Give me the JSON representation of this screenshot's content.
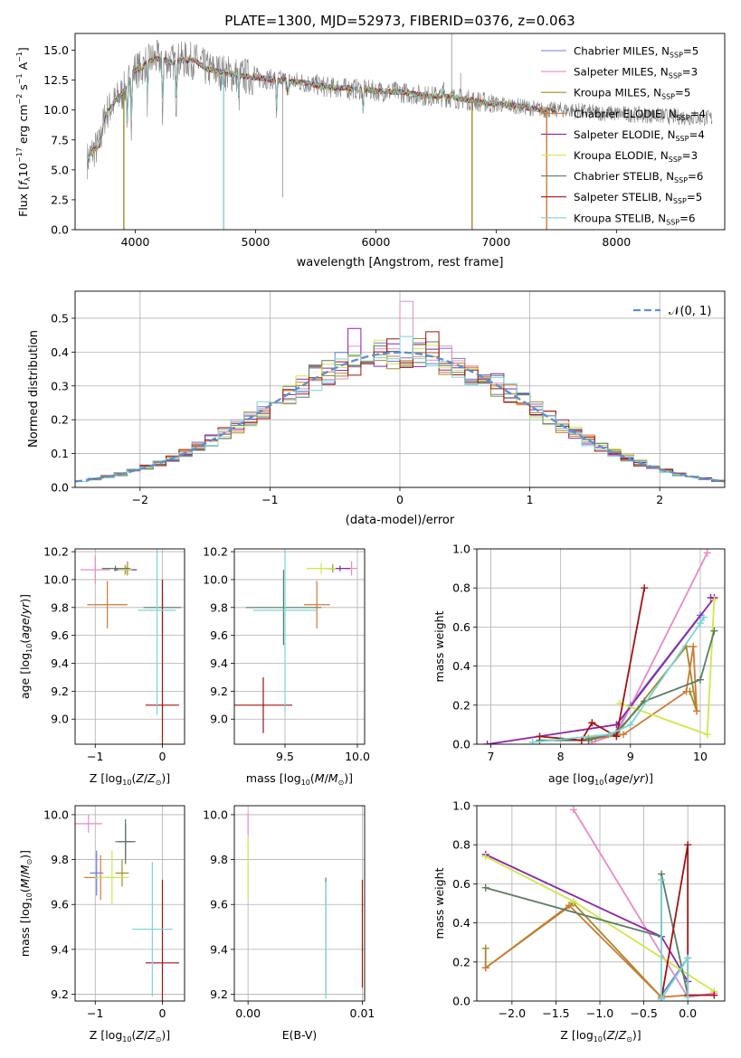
{
  "figure_title": "PLATE=1300, MJD=52973, FIBERID=0376, z=0.063",
  "series_names": [
    "Chabrier MILES",
    "Salpeter MILES",
    "Kroupa MILES",
    "Chabrier ELODIE",
    "Salpeter ELODIE",
    "Kroupa ELODIE",
    "Chabrier STELIB",
    "Salpeter STELIB",
    "Kroupa STELIB"
  ],
  "series_nssp": [
    5,
    3,
    5,
    4,
    4,
    3,
    6,
    5,
    6
  ],
  "colors": {
    "series": [
      "#6a7fd6",
      "#e98ac2",
      "#a38a28",
      "#cf7a34",
      "#8e24aa",
      "#cde84a",
      "#5a7d63",
      "#a51212",
      "#79d4d4"
    ],
    "grid": "#b0b0b0",
    "data": "#808080",
    "normal_curve": "#5b8fd6"
  },
  "chart_data": [
    {
      "type": "line",
      "id": "spectrum",
      "title": "PLATE=1300, MJD=52973, FIBERID=0376, z=0.063",
      "xlabel": "wavelength [Angstrom, rest frame]",
      "ylabel": "Flux [f_λ 10^-17 erg cm^-2 s^-1 A^-1]",
      "xlim": [
        3500,
        8900
      ],
      "ylim": [
        0,
        16.4
      ],
      "xticks": [
        4000,
        5000,
        6000,
        7000,
        8000
      ],
      "yticks": [
        0.0,
        2.5,
        5.0,
        7.5,
        10.0,
        12.5,
        15.0
      ],
      "xtick_labels": [
        "4000",
        "5000",
        "6000",
        "7000",
        "8000"
      ],
      "ytick_labels": [
        "0.0",
        "2.5",
        "5.0",
        "7.5",
        "10.0",
        "12.5",
        "15.0"
      ],
      "continuum": {
        "x": [
          3600,
          3650,
          3700,
          3750,
          3800,
          3850,
          3900,
          3950,
          4000,
          4050,
          4100,
          4200,
          4300,
          4400,
          4500,
          4600,
          4800,
          5000,
          5200,
          5400,
          5600,
          5800,
          6000,
          6200,
          6400,
          6600,
          6800,
          7000,
          7200,
          7400,
          7600,
          7800,
          8000,
          8200,
          8400,
          8600,
          8800
        ],
        "y": [
          5.8,
          6.6,
          7.0,
          9.6,
          10.3,
          10.9,
          11.5,
          12.6,
          13.4,
          13.4,
          14.1,
          14.3,
          14.0,
          14.2,
          14.1,
          13.4,
          13.0,
          12.7,
          12.5,
          12.3,
          11.9,
          11.8,
          11.6,
          11.5,
          11.2,
          11.1,
          10.8,
          10.5,
          10.3,
          10.0,
          10.0,
          9.8,
          9.7,
          9.6,
          9.5,
          9.4,
          9.3
        ]
      },
      "absorption_features": [
        {
          "x": 3934,
          "y": 8.0
        },
        {
          "x": 3969,
          "y": 8.8
        },
        {
          "x": 4102,
          "y": 10.7
        },
        {
          "x": 4227,
          "y": 9.7
        },
        {
          "x": 4340,
          "y": 10.4
        },
        {
          "x": 4861,
          "y": 10.9
        },
        {
          "x": 5175,
          "y": 9.8
        },
        {
          "x": 5270,
          "y": 10.7
        },
        {
          "x": 5893,
          "y": 9.4
        },
        {
          "x": 6563,
          "y": 11.8
        }
      ],
      "model_spikes": [
        {
          "x": 3905,
          "y": 0,
          "series": "Kroupa MILES"
        },
        {
          "x": 4735,
          "y": 0,
          "series": "Kroupa STELIB"
        },
        {
          "x": 6800,
          "y": 0,
          "series": "Kroupa MILES"
        },
        {
          "x": 7420,
          "y": 0,
          "series": "Chabrier ELODIE"
        }
      ],
      "legend_position": "upper-right"
    },
    {
      "type": "step",
      "id": "residual_histogram",
      "xlabel": "(data-model)/error",
      "ylabel": "Normed distribution",
      "xlim": [
        -2.5,
        2.5
      ],
      "ylim": [
        0,
        0.58
      ],
      "xticks": [
        -2,
        -1,
        0,
        1,
        2
      ],
      "yticks": [
        0.0,
        0.1,
        0.2,
        0.3,
        0.4,
        0.5
      ],
      "xtick_labels": [
        "−2",
        "−1",
        "0",
        "1",
        "2"
      ],
      "ytick_labels": [
        "0.0",
        "0.1",
        "0.2",
        "0.3",
        "0.4",
        "0.5"
      ],
      "bin_width": 0.1,
      "bin_start": -2.5,
      "reference_curve": {
        "name": "𝒩(0, 1)",
        "type": "normal",
        "mean": 0,
        "sigma": 1
      },
      "series_peaks": [
        {
          "series": "Salpeter MILES",
          "x": 0.05,
          "y": 0.55
        },
        {
          "series": "Salpeter ELODIE",
          "x": -0.35,
          "y": 0.47
        },
        {
          "series": "Salpeter STELIB",
          "x": 0.25,
          "y": 0.46
        }
      ],
      "legend_position": "upper-right"
    },
    {
      "type": "errorbar",
      "id": "age_vs_Z",
      "xlabel": "Z [log10(Z/Z⊙)]",
      "ylabel": "age [log10(age/yr)]",
      "xlim": [
        -1.3,
        0.33
      ],
      "ylim": [
        8.82,
        10.22
      ],
      "xticks": [
        -1,
        0
      ],
      "yticks": [
        9.0,
        9.2,
        9.4,
        9.6,
        9.8,
        10.0,
        10.2
      ],
      "xtick_labels": [
        "−1",
        "0"
      ],
      "ytick_labels": [
        "9.0",
        "9.2",
        "9.4",
        "9.6",
        "9.8",
        "10.0",
        "10.2"
      ],
      "points": [
        {
          "series": "Salpeter MILES",
          "x": -1.0,
          "xerr": 0.22,
          "y": 10.07,
          "yerr": 0.1
        },
        {
          "series": "Kroupa MILES",
          "x": -0.52,
          "xerr": 0.05,
          "y": 10.08,
          "yerr": 0.05
        },
        {
          "series": "Chabrier ELODIE",
          "x": -0.82,
          "xerr": 0.3,
          "y": 9.82,
          "yerr": 0.17
        },
        {
          "series": "Salpeter ELODIE",
          "x": -0.55,
          "xerr": 0.17,
          "y": 10.07,
          "yerr": 0.03
        },
        {
          "series": "Kroupa ELODIE",
          "x": -0.56,
          "xerr": 0.1,
          "y": 10.07,
          "yerr": 0.04
        },
        {
          "series": "Chabrier STELIB",
          "x": -0.7,
          "xerr": 0.2,
          "y": 10.08,
          "yerr": 0.02
        },
        {
          "series": "Chabrier STELIB",
          "x": 0.0,
          "xerr": 0.28,
          "y": 9.8,
          "yerr": 0.18
        },
        {
          "series": "Salpeter STELIB",
          "x": 0.0,
          "xerr": 0.25,
          "y": 9.1,
          "yerr": 0.9
        },
        {
          "series": "Kroupa STELIB",
          "x": -0.08,
          "xerr": 0.28,
          "y": 9.78,
          "yerr": 0.75
        }
      ]
    },
    {
      "type": "errorbar",
      "id": "age_vs_mass",
      "xlabel": "mass [log10(M/M⊙)]",
      "ylabel": "",
      "xlim": [
        9.15,
        10.05
      ],
      "ylim": [
        8.82,
        10.22
      ],
      "xticks": [
        9.5,
        10.0
      ],
      "yticks": [
        9.0,
        9.2,
        9.4,
        9.6,
        9.8,
        10.0,
        10.2
      ],
      "xtick_labels": [
        "9.5",
        "10.0"
      ],
      "ytick_labels": [
        "9.0",
        "9.2",
        "9.4",
        "9.6",
        "9.8",
        "10.0",
        "10.2"
      ],
      "points": [
        {
          "series": "Salpeter MILES",
          "x": 9.96,
          "xerr": 0.04,
          "y": 10.08,
          "yerr": 0.05
        },
        {
          "series": "Kroupa MILES",
          "x": 9.83,
          "xerr": 0.06,
          "y": 10.08,
          "yerr": 0.03
        },
        {
          "series": "Chabrier ELODIE",
          "x": 9.72,
          "xerr": 0.09,
          "y": 9.82,
          "yerr": 0.17
        },
        {
          "series": "Salpeter ELODIE",
          "x": 9.88,
          "xerr": 0.07,
          "y": 10.08,
          "yerr": 0.02
        },
        {
          "series": "Kroupa ELODIE",
          "x": 9.75,
          "xerr": 0.1,
          "y": 10.08,
          "yerr": 0.04
        },
        {
          "series": "Chabrier STELIB",
          "x": 9.49,
          "xerr": 0.26,
          "y": 9.8,
          "yerr": 0.27
        },
        {
          "series": "Salpeter STELIB",
          "x": 9.35,
          "xerr": 0.2,
          "y": 9.1,
          "yerr": 0.2
        },
        {
          "series": "Kroupa STELIB",
          "x": 9.5,
          "xerr": 0.22,
          "y": 9.78,
          "yerr": 0.73
        }
      ]
    },
    {
      "type": "line",
      "id": "weight_vs_age",
      "xlabel": "age [log10(age/yr)]",
      "ylabel": "mass weight",
      "xlim": [
        6.8,
        10.35
      ],
      "ylim": [
        0,
        1
      ],
      "xticks": [
        7,
        8,
        9,
        10
      ],
      "yticks": [
        0.0,
        0.2,
        0.4,
        0.6,
        0.8,
        1.0
      ],
      "xtick_labels": [
        "7",
        "8",
        "9",
        "10"
      ],
      "ytick_labels": [
        "0.0",
        "0.2",
        "0.4",
        "0.6",
        "0.8",
        "1.0"
      ],
      "series": [
        {
          "name": "Chabrier MILES",
          "x": [
            8.3,
            8.8,
            9.0,
            10.0
          ],
          "y": [
            0.02,
            0.06,
            0.2,
            0.66
          ]
        },
        {
          "name": "Salpeter MILES",
          "x": [
            8.45,
            8.8,
            10.1
          ],
          "y": [
            0.01,
            0.05,
            0.98
          ]
        },
        {
          "name": "Kroupa MILES",
          "x": [
            8.4,
            8.8,
            9.8,
            9.95,
            9.85
          ],
          "y": [
            0.03,
            0.05,
            0.5,
            0.17,
            0.27
          ]
        },
        {
          "name": "Chabrier ELODIE",
          "x": [
            8.5,
            8.9,
            9.8,
            9.9,
            9.95
          ],
          "y": [
            0.03,
            0.05,
            0.27,
            0.5,
            0.17
          ]
        },
        {
          "name": "Salpeter ELODIE",
          "x": [
            6.95,
            8.8,
            10.2,
            10.15
          ],
          "y": [
            0.0,
            0.1,
            0.75,
            0.75
          ]
        },
        {
          "name": "Kroupa ELODIE",
          "x": [
            8.85,
            10.1,
            10.2
          ],
          "y": [
            0.21,
            0.05,
            0.74
          ]
        },
        {
          "name": "Chabrier STELIB",
          "x": [
            7.7,
            8.4,
            8.8,
            9.2,
            10.0,
            10.2
          ],
          "y": [
            0.02,
            0.02,
            0.06,
            0.22,
            0.33,
            0.58
          ]
        },
        {
          "name": "Salpeter STELIB",
          "x": [
            7.7,
            8.3,
            8.45,
            8.8,
            9.2
          ],
          "y": [
            0.04,
            0.02,
            0.11,
            0.04,
            0.8
          ]
        },
        {
          "name": "Kroupa STELIB",
          "x": [
            7.6,
            8.7,
            9.0,
            10.0,
            10.05
          ],
          "y": [
            0.01,
            0.05,
            0.1,
            0.62,
            0.65
          ]
        }
      ]
    },
    {
      "type": "errorbar",
      "id": "mass_vs_Z",
      "xlabel": "Z [log10(Z/Z⊙)]",
      "ylabel": "mass [log10(M/M⊙)]",
      "xlim": [
        -1.3,
        0.33
      ],
      "ylim": [
        9.17,
        10.04
      ],
      "xticks": [
        -1,
        0
      ],
      "yticks": [
        9.2,
        9.4,
        9.6,
        9.8,
        10.0
      ],
      "xtick_labels": [
        "−1",
        "0"
      ],
      "ytick_labels": [
        "9.2",
        "9.4",
        "9.6",
        "9.8",
        "10.0"
      ],
      "points": [
        {
          "series": "Chabrier MILES",
          "x": -0.98,
          "xerr": 0.1,
          "y": 9.74,
          "yerr": 0.1
        },
        {
          "series": "Salpeter MILES",
          "x": -1.1,
          "xerr": 0.2,
          "y": 9.96,
          "yerr": 0.04
        },
        {
          "series": "Kroupa MILES",
          "x": -0.6,
          "xerr": 0.1,
          "y": 9.74,
          "yerr": 0.06
        },
        {
          "series": "Chabrier ELODIE",
          "x": -0.92,
          "xerr": 0.25,
          "y": 9.72,
          "yerr": 0.1
        },
        {
          "series": "Salpeter ELODIE",
          "x": -0.55,
          "xerr": 0.1,
          "y": 9.88,
          "yerr": 0.08
        },
        {
          "series": "Kroupa ELODIE",
          "x": -0.75,
          "xerr": 0.25,
          "y": 9.72,
          "yerr": 0.12
        },
        {
          "series": "Chabrier STELIB",
          "x": -0.55,
          "xerr": 0.15,
          "y": 9.88,
          "yerr": 0.1
        },
        {
          "series": "Salpeter STELIB",
          "x": 0.0,
          "xerr": 0.25,
          "y": 9.34,
          "yerr": 0.37
        },
        {
          "series": "Kroupa STELIB",
          "x": -0.15,
          "xerr": 0.3,
          "y": 9.49,
          "yerr": 0.3
        }
      ]
    },
    {
      "type": "errorbar",
      "id": "mass_vs_EBV",
      "xlabel": "E(B-V)",
      "ylabel": "",
      "xlim": [
        -0.0012,
        0.0102
      ],
      "ylim": [
        9.17,
        10.04
      ],
      "xticks": [
        0.0,
        0.01
      ],
      "yticks": [
        9.2,
        9.4,
        9.6,
        9.8,
        10.0
      ],
      "xtick_labels": [
        "0.00",
        "0.01"
      ],
      "ytick_labels": [
        "9.2",
        "9.4",
        "9.6",
        "9.8",
        "10.0"
      ],
      "points": [
        {
          "series": "Salpeter MILES",
          "x": 0.0,
          "xerr": 0,
          "y": 9.96,
          "yerr": 0.05
        },
        {
          "series": "Kroupa ELODIE",
          "x": 0.0,
          "xerr": 0,
          "y": 9.76,
          "yerr": 0.14
        },
        {
          "series": "Chabrier STELIB",
          "x": 0.0068,
          "xerr": 0,
          "y": 9.46,
          "yerr": 0.26
        },
        {
          "series": "Kroupa STELIB",
          "x": 0.0068,
          "xerr": 0,
          "y": 9.44,
          "yerr": 0.26
        },
        {
          "series": "Salpeter STELIB",
          "x": 0.01,
          "xerr": 0,
          "y": 9.47,
          "yerr": 0.24
        }
      ]
    },
    {
      "type": "line",
      "id": "weight_vs_Z",
      "xlabel": "Z [log10(Z/Z⊙)]",
      "ylabel": "mass weight",
      "xlim": [
        -2.4,
        0.42
      ],
      "ylim": [
        0,
        1
      ],
      "xticks": [
        -2.0,
        -1.5,
        -1.0,
        -0.5,
        0.0
      ],
      "yticks": [
        0.0,
        0.2,
        0.4,
        0.6,
        0.8,
        1.0
      ],
      "xtick_labels": [
        "−2.0",
        "−1.5",
        "−1.0",
        "−0.5",
        "0.0"
      ],
      "ytick_labels": [
        "0.0",
        "0.2",
        "0.4",
        "0.6",
        "0.8",
        "1.0"
      ],
      "series": [
        {
          "name": "Chabrier MILES",
          "x": [
            -0.3,
            0.0
          ],
          "y": [
            0.03,
            0.22
          ]
        },
        {
          "name": "Salpeter MILES",
          "x": [
            -1.3,
            0.0,
            0.3
          ],
          "y": [
            0.98,
            0.02,
            0.04
          ]
        },
        {
          "name": "Kroupa MILES",
          "x": [
            -2.3,
            -2.3,
            -1.3,
            -0.3
          ],
          "y": [
            0.27,
            0.17,
            0.5,
            0.02
          ]
        },
        {
          "name": "Chabrier ELODIE",
          "x": [
            -2.3,
            -1.35,
            -0.3,
            0.0
          ],
          "y": [
            0.17,
            0.49,
            0.02,
            0.03
          ]
        },
        {
          "name": "Salpeter ELODIE",
          "x": [
            -2.3,
            -0.3,
            0.0
          ],
          "y": [
            0.75,
            0.33,
            0.1
          ]
        },
        {
          "name": "Kroupa ELODIE",
          "x": [
            -2.3,
            -1.3,
            0.3
          ],
          "y": [
            0.74,
            0.51,
            0.05
          ]
        },
        {
          "name": "Chabrier STELIB",
          "x": [
            -2.3,
            -0.3,
            -0.3,
            0.0
          ],
          "y": [
            0.58,
            0.33,
            0.65,
            0.03
          ]
        },
        {
          "name": "Salpeter STELIB",
          "x": [
            -0.3,
            0.0,
            0.0,
            0.3
          ],
          "y": [
            0.01,
            0.8,
            0.03,
            0.03
          ]
        },
        {
          "name": "Kroupa STELIB",
          "x": [
            -0.3,
            -0.3,
            0.0,
            0.0
          ],
          "y": [
            0.62,
            0.01,
            0.22,
            0.02
          ]
        }
      ]
    }
  ]
}
